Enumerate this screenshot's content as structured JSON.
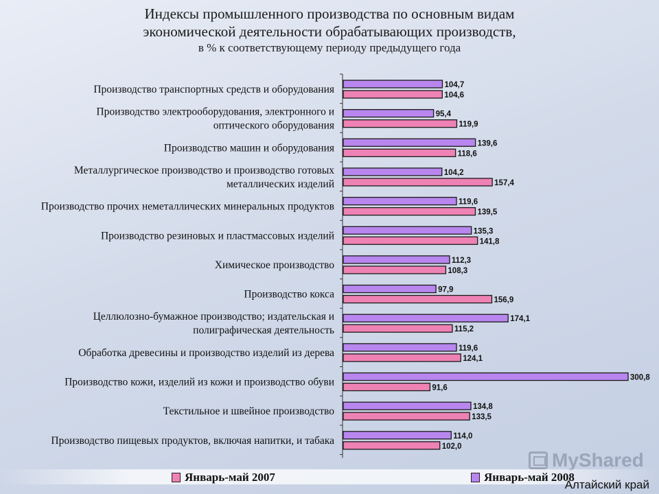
{
  "title": {
    "line1": "Индексы промышленного производства по основным видам",
    "line2": "экономической деятельности обрабатывающих производств,",
    "line3": "в % к соответствующему периоду предыдущего года"
  },
  "legend": {
    "item1": "Январь-май 2007",
    "item2": "Январь-май 2008"
  },
  "watermark": "MyShared",
  "region": "Алтайский край",
  "colors": {
    "series2007": "#ee82b4",
    "series2008": "#b886ee",
    "outline": "#1a1a1a"
  },
  "chart_data": {
    "type": "bar",
    "orientation": "horizontal",
    "categories": [
      [
        "Производство транспортных средств и оборудования"
      ],
      [
        "Производство электрооборудования, электронного и",
        "оптического оборудования"
      ],
      [
        "Производство машин и оборудования"
      ],
      [
        "Металлургическое производство и производство готовых",
        "металлических изделий"
      ],
      [
        "Производство прочих неметаллических минеральных продуктов"
      ],
      [
        "Производство резиновых и пластмассовых изделий"
      ],
      [
        "Химическое производство"
      ],
      [
        "Производство кокса"
      ],
      [
        "Целлюлозно-бумажное производство; издательская и",
        "полиграфическая деятельность"
      ],
      [
        "Обработка древесины и производство изделий из дерева"
      ],
      [
        "Производство кожи, изделий из кожи и производство обуви"
      ],
      [
        "Текстильное и швейное производство"
      ],
      [
        "Производство пищевых продуктов, включая напитки, и табака"
      ]
    ],
    "series": [
      {
        "name": "Январь-май 2008",
        "values": [
          104.7,
          95.4,
          139.6,
          104.2,
          119.6,
          135.3,
          112.3,
          97.9,
          174.1,
          119.6,
          300.8,
          134.8,
          114.0
        ],
        "labels": [
          "104,7",
          "95,4",
          "139,6",
          "104,2",
          "119,6",
          "135,3",
          "112,3",
          "97,9",
          "174,1",
          "119,6",
          "300,8",
          "134,8",
          "114,0"
        ]
      },
      {
        "name": "Январь-май 2007",
        "values": [
          104.6,
          119.9,
          118.6,
          157.4,
          139.5,
          141.8,
          108.3,
          156.9,
          115.2,
          124.1,
          91.6,
          133.5,
          102.0
        ],
        "labels": [
          "104,6",
          "119,9",
          "118,6",
          "157,4",
          "139,5",
          "141,8",
          "108,3",
          "156,9",
          "115,2",
          "124,1",
          "91,6",
          "133,5",
          "102,0"
        ]
      }
    ],
    "xlim": [
      0,
      300.8
    ],
    "legend_position": "bottom",
    "grid": false
  }
}
